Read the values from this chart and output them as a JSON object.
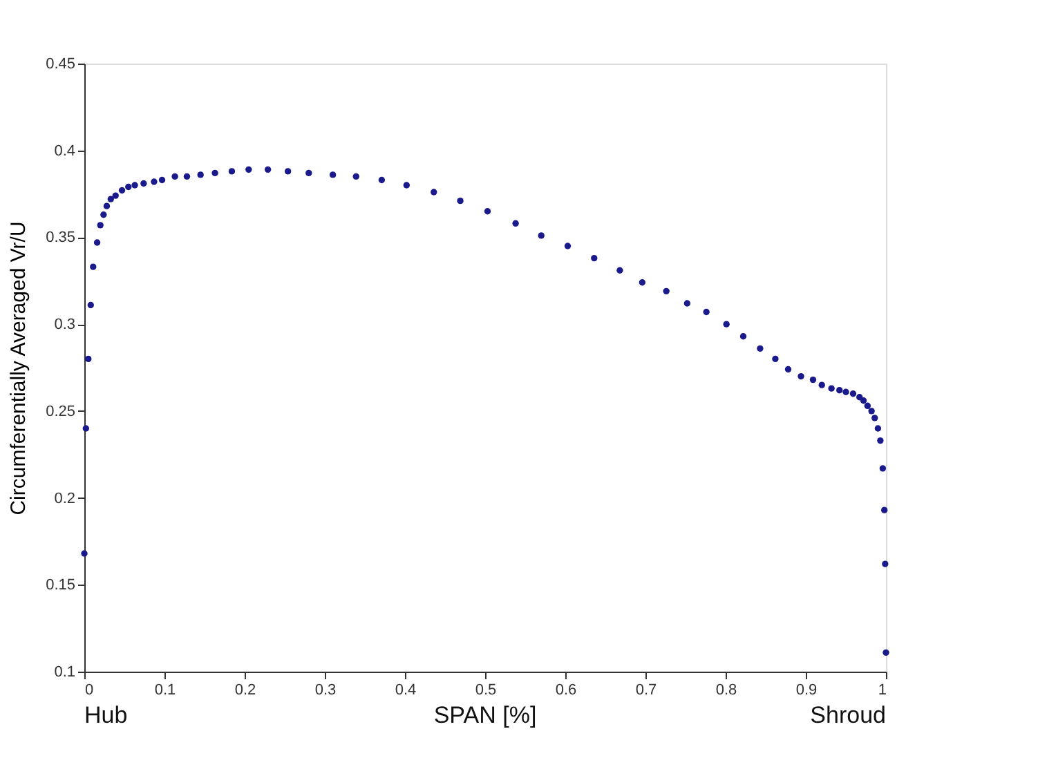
{
  "chart_data": {
    "type": "scatter",
    "xlabel": "SPAN [%]",
    "ylabel": "Circumferentially Averaged Vr/U",
    "annotations": [
      "Hub",
      "Shroud"
    ],
    "x": [
      0.0,
      0.002,
      0.005,
      0.008,
      0.011,
      0.016,
      0.02,
      0.024,
      0.028,
      0.033,
      0.039,
      0.047,
      0.055,
      0.063,
      0.074,
      0.087,
      0.097,
      0.113,
      0.128,
      0.145,
      0.163,
      0.184,
      0.205,
      0.229,
      0.254,
      0.28,
      0.31,
      0.339,
      0.371,
      0.402,
      0.436,
      0.469,
      0.503,
      0.538,
      0.57,
      0.603,
      0.636,
      0.668,
      0.696,
      0.726,
      0.752,
      0.776,
      0.801,
      0.822,
      0.843,
      0.862,
      0.878,
      0.894,
      0.909,
      0.92,
      0.932,
      0.942,
      0.95,
      0.959,
      0.967,
      0.972,
      0.977,
      0.982,
      0.986,
      0.99,
      0.993,
      0.996,
      0.998,
      0.999,
      1.0
    ],
    "series": [
      {
        "color": "#1a1a8c",
        "values": [
          0.168,
          0.24,
          0.28,
          0.311,
          0.333,
          0.347,
          0.357,
          0.363,
          0.368,
          0.372,
          0.374,
          0.377,
          0.379,
          0.38,
          0.381,
          0.382,
          0.383,
          0.385,
          0.385,
          0.386,
          0.387,
          0.388,
          0.389,
          0.389,
          0.388,
          0.387,
          0.386,
          0.385,
          0.383,
          0.38,
          0.376,
          0.371,
          0.365,
          0.358,
          0.351,
          0.345,
          0.338,
          0.331,
          0.324,
          0.319,
          0.312,
          0.307,
          0.3,
          0.293,
          0.286,
          0.28,
          0.274,
          0.27,
          0.268,
          0.265,
          0.263,
          0.262,
          0.261,
          0.26,
          0.258,
          0.256,
          0.253,
          0.25,
          0.246,
          0.24,
          0.233,
          0.217,
          0.193,
          0.162,
          0.111
        ]
      }
    ],
    "xlim": [
      0,
      1
    ],
    "xticks": [
      0,
      0.1,
      0.2,
      0.3,
      0.4,
      0.5,
      0.6,
      0.7,
      0.8,
      0.9,
      1
    ],
    "ylim": [
      0.1,
      0.45
    ],
    "yticks": [
      0.1,
      0.15,
      0.2,
      0.25,
      0.3,
      0.35,
      0.4,
      0.45
    ],
    "grid": false,
    "marker": "circle"
  }
}
